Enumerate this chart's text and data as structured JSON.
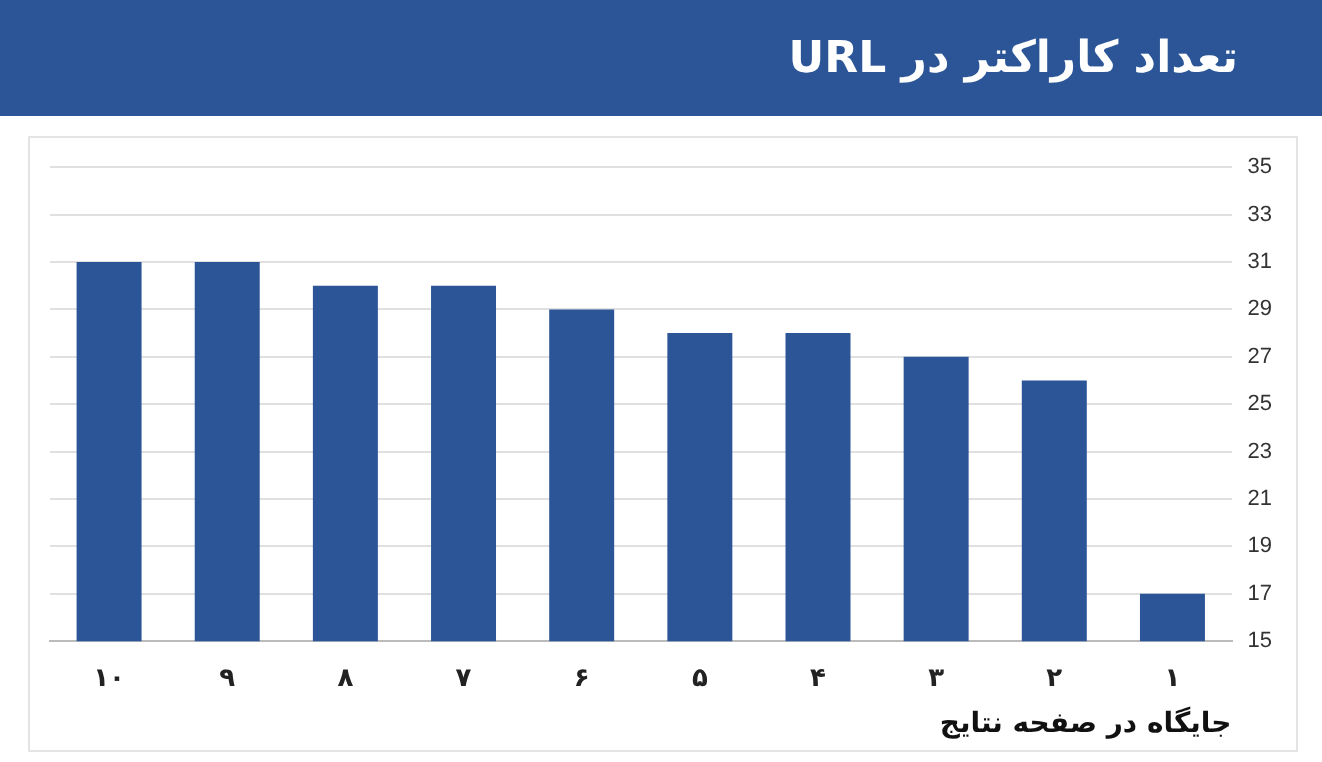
{
  "chart_data": {
    "type": "bar",
    "title": "تعداد کاراکتر در URL",
    "xlabel": "جایگاه در صفحه نتایج",
    "categories": [
      "۱۰",
      "۹",
      "۸",
      "۷",
      "۶",
      "۵",
      "۴",
      "۳",
      "۲",
      "۱"
    ],
    "values": [
      31,
      31,
      30,
      30,
      29,
      28,
      28,
      27,
      26,
      17
    ],
    "color": "#2b5597",
    "ylim": [
      15,
      35
    ],
    "yticks": [
      15,
      17,
      19,
      21,
      23,
      25,
      27,
      29,
      31,
      33,
      35
    ],
    "grid": "y"
  }
}
